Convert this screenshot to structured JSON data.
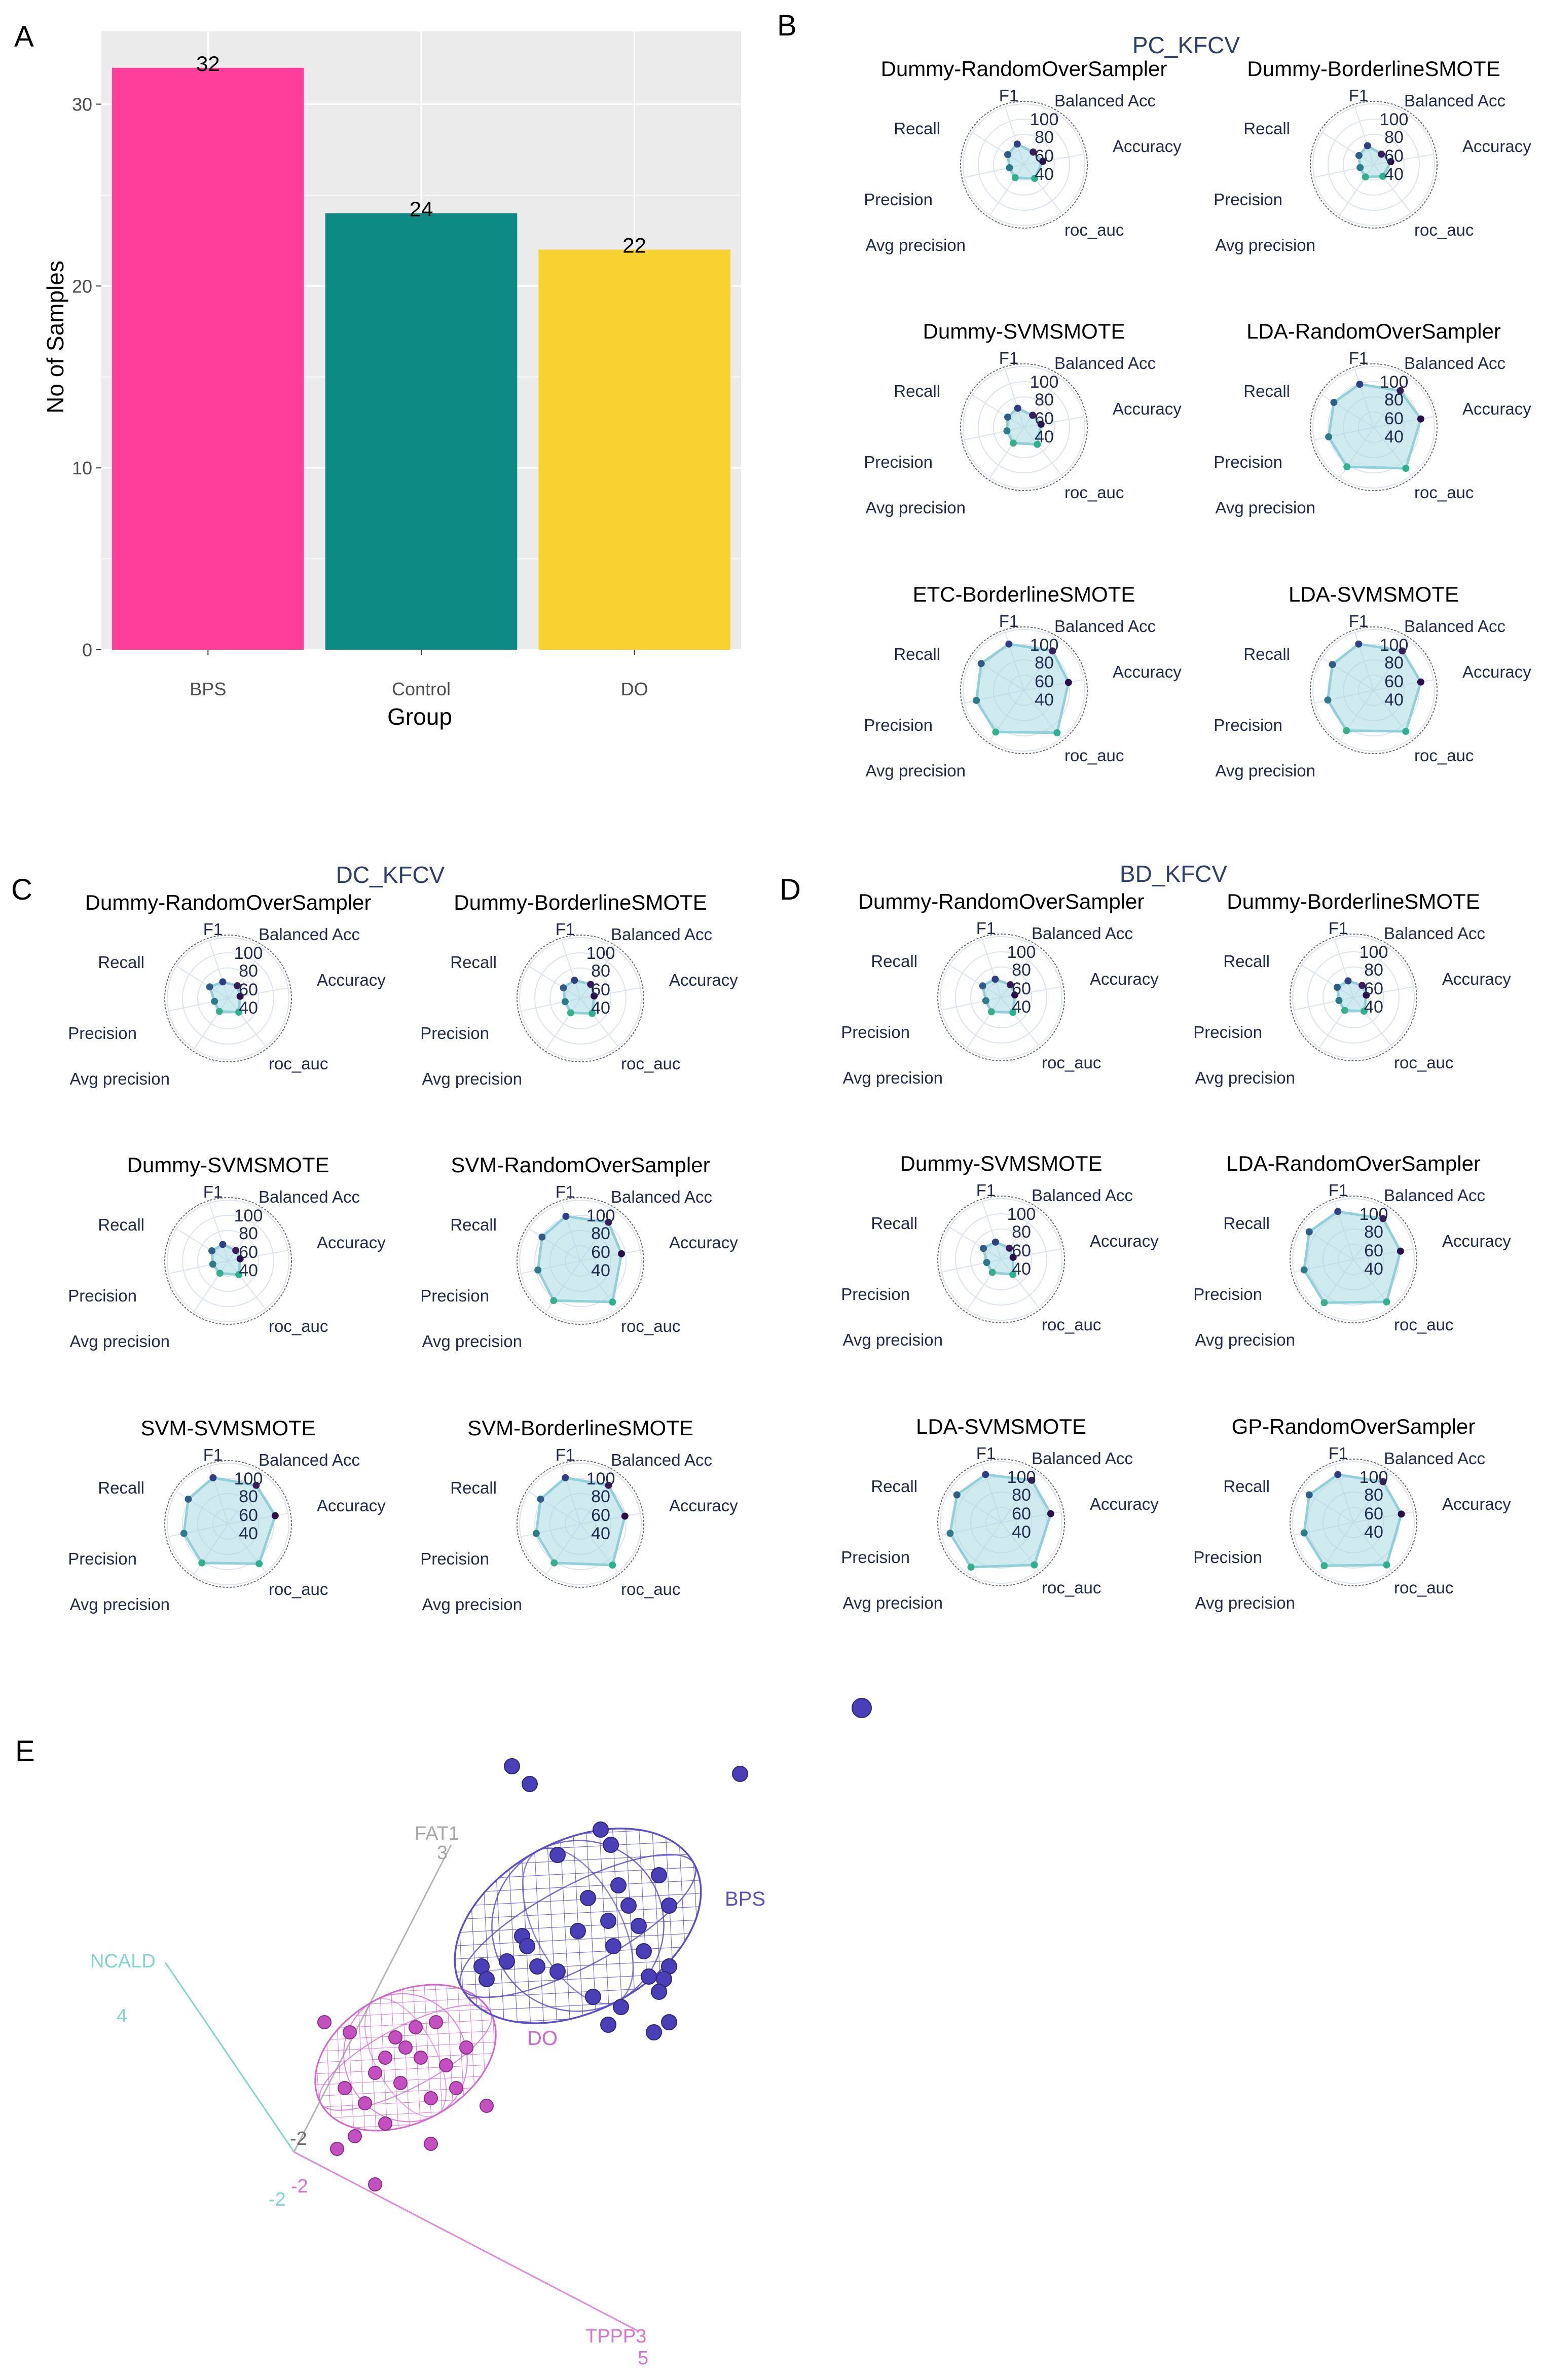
{
  "panel_letters": {
    "A": "A",
    "B": "B",
    "C": "C",
    "D": "D",
    "E": "E"
  },
  "chart_data": [
    {
      "panel": "A",
      "type": "bar",
      "categories": [
        "BPS",
        "Control",
        "DO"
      ],
      "values": [
        32,
        24,
        22
      ],
      "data_labels": [
        "32",
        "24",
        "22"
      ],
      "colors": [
        "#ff3d9a",
        "#0e8a84",
        "#f8d22e"
      ],
      "title": "",
      "xlabel": "Group",
      "ylabel": "No of Samples",
      "ylim": [
        0,
        34
      ],
      "yticks": [
        0,
        10,
        20,
        30
      ],
      "grid": true,
      "background": "#ebebeb"
    },
    {
      "panel": "B",
      "type": "radar",
      "title": "PC_KFCV",
      "axes": [
        "Balanced Acc",
        "Accuracy",
        "roc_auc",
        "Avg precision",
        "Precision",
        "Recall",
        "F1"
      ],
      "rticks": [
        "100",
        "80",
        "60",
        "40"
      ],
      "charts": [
        {
          "title": "Dummy-RandomOverSampler",
          "values": [
            48,
            52,
            50,
            48,
            47,
            52,
            55
          ]
        },
        {
          "title": "Dummy-BorderlineSMOTE",
          "values": [
            45,
            50,
            47,
            47,
            46,
            50,
            53
          ]
        },
        {
          "title": "Dummy-SVMSMOTE",
          "values": [
            47,
            50,
            55,
            52,
            50,
            52,
            53
          ]
        },
        {
          "title": "LDA-RandomOverSampler",
          "values": [
            82,
            85,
            90,
            85,
            83,
            84,
            82
          ]
        },
        {
          "title": "ETC-BorderlineSMOTE",
          "values": [
            86,
            82,
            92,
            88,
            86,
            88,
            86
          ]
        },
        {
          "title": "LDA-SVMSMOTE",
          "values": [
            86,
            85,
            90,
            86,
            84,
            86,
            86
          ]
        }
      ]
    },
    {
      "panel": "C",
      "type": "radar",
      "title": "DC_KFCV",
      "axes": [
        "Balanced Acc",
        "Accuracy",
        "roc_auc",
        "Avg precision",
        "Precision",
        "Recall",
        "F1"
      ],
      "rticks": [
        "100",
        "80",
        "60",
        "40"
      ],
      "charts": [
        {
          "title": "Dummy-RandomOverSampler",
          "values": [
            48,
            44,
            50,
            48,
            46,
            55,
            50
          ]
        },
        {
          "title": "Dummy-BorderlineSMOTE",
          "values": [
            50,
            46,
            52,
            50,
            48,
            53,
            52
          ]
        },
        {
          "title": "Dummy-SVMSMOTE",
          "values": [
            45,
            44,
            50,
            47,
            48,
            52,
            50
          ]
        },
        {
          "title": "SVM-RandomOverSampler",
          "values": [
            85,
            78,
            90,
            85,
            80,
            82,
            84
          ]
        },
        {
          "title": "SVM-SVMSMOTE",
          "values": [
            85,
            85,
            88,
            84,
            82,
            84,
            86
          ]
        },
        {
          "title": "SVM-BorderlineSMOTE",
          "values": [
            85,
            82,
            90,
            84,
            82,
            84,
            86
          ]
        }
      ]
    },
    {
      "panel": "D",
      "type": "radar",
      "title": "BD_KFCV",
      "axes": [
        "Balanced Acc",
        "Accuracy",
        "roc_auc",
        "Avg precision",
        "Precision",
        "Recall",
        "F1"
      ],
      "rticks": [
        "100",
        "80",
        "60",
        "40"
      ],
      "charts": [
        {
          "title": "Dummy-RandomOverSampler",
          "values": [
            48,
            46,
            52,
            50,
            48,
            55,
            52
          ]
        },
        {
          "title": "Dummy-BorderlineSMOTE",
          "values": [
            47,
            45,
            50,
            48,
            47,
            52,
            50
          ]
        },
        {
          "title": "Dummy-SVMSMOTE",
          "values": [
            46,
            44,
            52,
            48,
            47,
            54,
            51
          ]
        },
        {
          "title": "LDA-RandomOverSampler",
          "values": [
            88,
            85,
            92,
            90,
            88,
            90,
            88
          ]
        },
        {
          "title": "LDA-SVMSMOTE",
          "values": [
            90,
            88,
            92,
            92,
            90,
            90,
            88
          ]
        },
        {
          "title": "GP-RandomOverSampler",
          "values": [
            88,
            86,
            92,
            90,
            88,
            90,
            88
          ]
        }
      ]
    },
    {
      "panel": "E",
      "type": "scatter3d",
      "axes": [
        {
          "name": "NCALD",
          "low": "-2",
          "high": "4",
          "color": "#7fd6cf"
        },
        {
          "name": "FAT1",
          "low": "-2",
          "high": "3",
          "color": "#a6a6a6"
        },
        {
          "name": "TPPP3",
          "low": "-2",
          "high": "5",
          "color": "#d873d0"
        }
      ],
      "groups": [
        {
          "name": "BPS",
          "color": "#5a4fc8"
        },
        {
          "name": "DO",
          "color": "#d365cf"
        }
      ]
    }
  ]
}
